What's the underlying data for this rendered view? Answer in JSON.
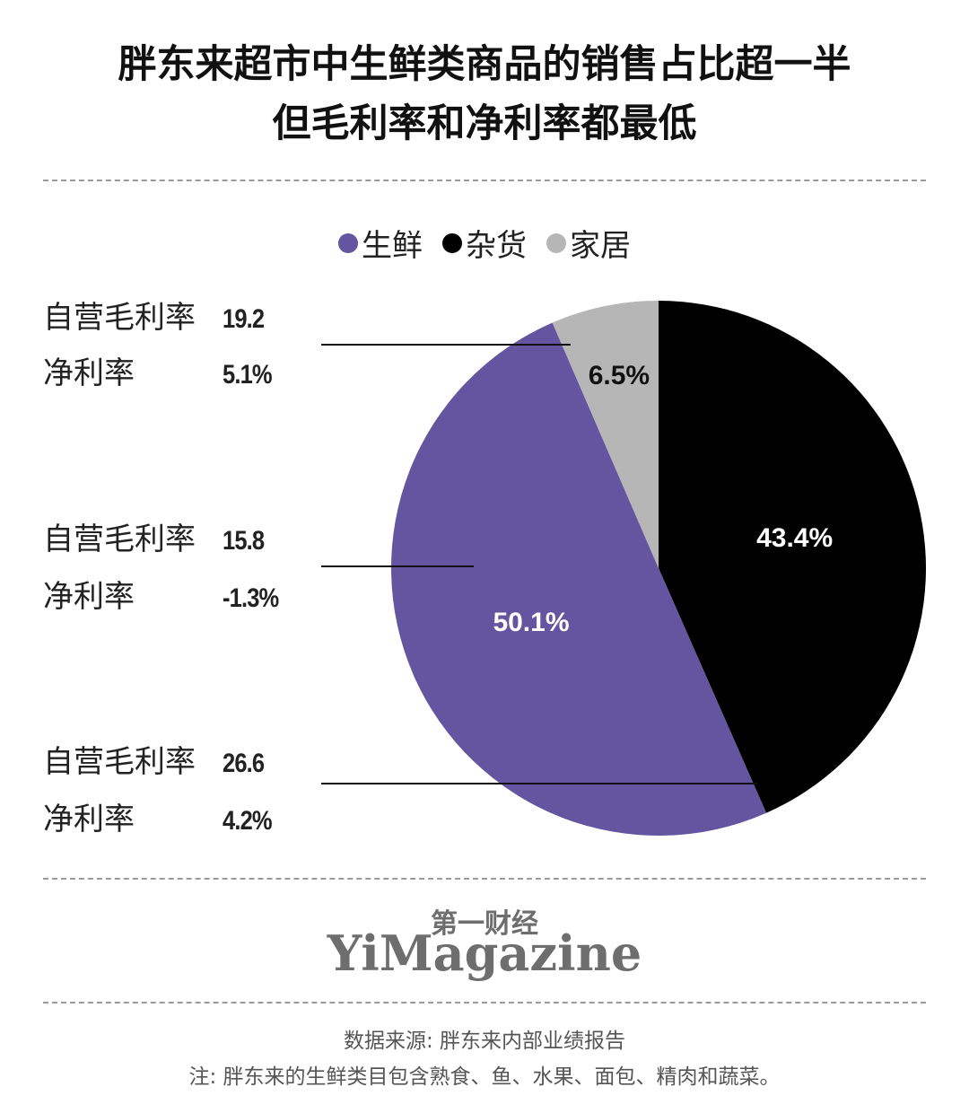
{
  "title": {
    "line1": "胖东来超市中生鲜类商品的销售占比超一半",
    "line2": "但毛利率和净利率都最低"
  },
  "legend": [
    {
      "label": "生鲜",
      "color": "#6355a0"
    },
    {
      "label": "杂货",
      "color": "#000000"
    },
    {
      "label": "家居",
      "color": "#b6b6b6"
    }
  ],
  "metrics": [
    {
      "category": "家居",
      "gross_label": "自营毛利率",
      "gross_value": "19.2",
      "net_label": "净利率",
      "net_value": "5.1%"
    },
    {
      "category": "生鲜",
      "gross_label": "自营毛利率",
      "gross_value": "15.8",
      "net_label": "净利率",
      "net_value": "-1.3%"
    },
    {
      "category": "杂货",
      "gross_label": "自营毛利率",
      "gross_value": "26.6",
      "net_label": "净利率",
      "net_value": "4.2%"
    }
  ],
  "chart_data": {
    "type": "pie",
    "slices": [
      {
        "name": "杂货",
        "value": 43.4,
        "label": "43.4%",
        "color": "#000000"
      },
      {
        "name": "生鲜",
        "value": 50.1,
        "label": "50.1%",
        "color": "#6355a0"
      },
      {
        "name": "家居",
        "value": 6.5,
        "label": "6.5%",
        "color": "#b6b6b6"
      }
    ],
    "legend_position": "top"
  },
  "brand": {
    "cn": "第一财经",
    "en": "YiMagazine"
  },
  "source": "数据来源: 胖东来内部业绩报告",
  "note": "注: 胖东来的生鲜类目包含熟食、鱼、水果、面包、精肉和蔬菜。"
}
